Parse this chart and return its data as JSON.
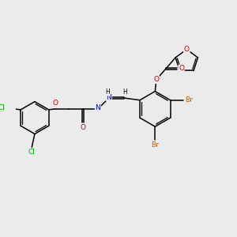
{
  "background_color": "#ebebeb",
  "atom_colors": {
    "O": "#cc0000",
    "N": "#0000cc",
    "Br": "#cc6600",
    "Cl": "#00aa00"
  },
  "bond_color": "#000000",
  "figsize": [
    3.0,
    3.0
  ],
  "dpi": 100
}
